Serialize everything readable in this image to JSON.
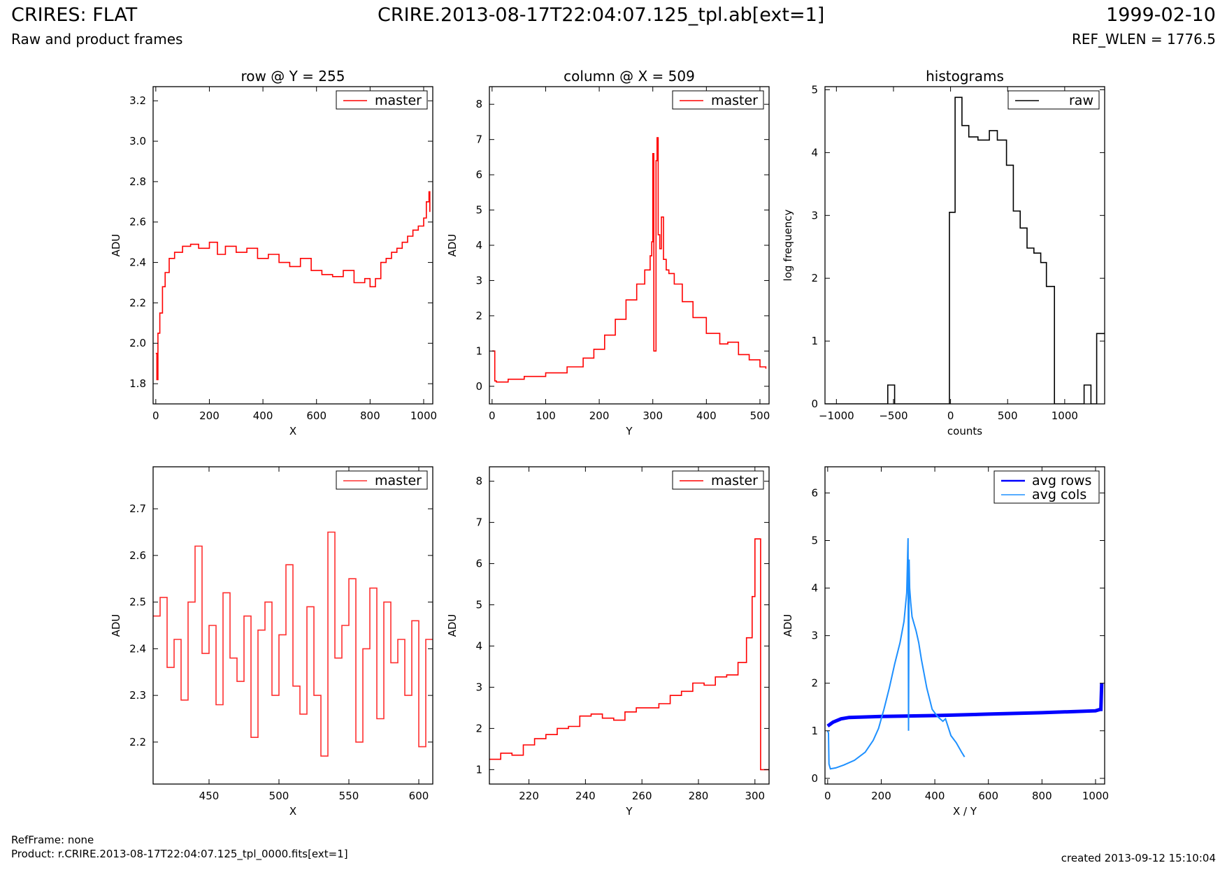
{
  "header": {
    "title_left": "CRIRES: FLAT",
    "subtitle_left": "Raw and product frames",
    "title_center": "CRIRE.2013-08-17T22:04:07.125_tpl.ab[ext=1]",
    "title_right": "1999-02-10",
    "subtitle_right": "REF_WLEN = 1776.5"
  },
  "footer": {
    "refframe": "RefFrame: none",
    "product": "Product: r.CRIRE.2013-08-17T22:04:07.125_tpl_0000.fits[ext=1]",
    "created": "created 2013-09-12 15:10:04"
  },
  "colors": {
    "red": "#ff0000",
    "blue": "#0000ff",
    "lightblue": "#1e90ff",
    "black": "#000000"
  },
  "chart_data": [
    {
      "type": "line",
      "title": "row @ Y = 255",
      "xlabel": "X",
      "ylabel": "ADU",
      "xlim": [
        -10,
        1034
      ],
      "ylim": [
        1.7,
        3.27
      ],
      "xticks": [
        0,
        200,
        400,
        600,
        800,
        1000
      ],
      "yticks": [
        1.8,
        2.0,
        2.2,
        2.4,
        2.6,
        2.8,
        3.0,
        3.2
      ],
      "xtick_labels": [
        "0",
        "200",
        "400",
        "600",
        "800",
        "1000"
      ],
      "ytick_labels": [
        "1.8",
        "2.0",
        "2.2",
        "2.4",
        "2.6",
        "2.8",
        "3.0",
        "3.2"
      ],
      "legend": "top-right",
      "legend_align": "right",
      "series": [
        {
          "name": "master",
          "color": "#ff0000",
          "style": "step",
          "x": [
            0,
            4,
            8,
            15,
            25,
            35,
            50,
            70,
            100,
            130,
            160,
            200,
            230,
            260,
            300,
            340,
            380,
            420,
            460,
            500,
            540,
            580,
            620,
            660,
            700,
            740,
            780,
            800,
            820,
            840,
            860,
            880,
            900,
            920,
            940,
            960,
            980,
            1000,
            1010,
            1020,
            1023
          ],
          "y": [
            1.95,
            1.82,
            2.05,
            2.15,
            2.28,
            2.35,
            2.42,
            2.45,
            2.48,
            2.49,
            2.47,
            2.5,
            2.44,
            2.48,
            2.45,
            2.47,
            2.42,
            2.44,
            2.4,
            2.38,
            2.42,
            2.36,
            2.34,
            2.33,
            2.36,
            2.3,
            2.32,
            2.28,
            2.32,
            2.4,
            2.42,
            2.45,
            2.47,
            2.5,
            2.53,
            2.56,
            2.58,
            2.62,
            2.7,
            2.75,
            2.65
          ]
        }
      ]
    },
    {
      "type": "line",
      "title": "column @ X = 509",
      "xlabel": "Y",
      "ylabel": "ADU",
      "xlim": [
        -5,
        517
      ],
      "ylim": [
        -0.5,
        8.5
      ],
      "xticks": [
        0,
        100,
        200,
        300,
        400,
        500
      ],
      "yticks": [
        0,
        1,
        2,
        3,
        4,
        5,
        6,
        7,
        8
      ],
      "xtick_labels": [
        "0",
        "100",
        "200",
        "300",
        "400",
        "500"
      ],
      "ytick_labels": [
        "0",
        "1",
        "2",
        "3",
        "4",
        "5",
        "6",
        "7",
        "8"
      ],
      "legend": "top-right",
      "legend_align": "right",
      "series": [
        {
          "name": "master",
          "color": "#ff0000",
          "style": "step",
          "x": [
            0,
            3,
            5,
            8,
            30,
            60,
            100,
            140,
            170,
            190,
            210,
            230,
            250,
            270,
            285,
            295,
            298,
            300,
            302,
            304,
            306,
            308,
            310,
            313,
            316,
            320,
            325,
            330,
            340,
            355,
            375,
            400,
            425,
            440,
            460,
            480,
            500,
            511
          ],
          "y": [
            1.0,
            1.0,
            0.15,
            0.12,
            0.2,
            0.28,
            0.38,
            0.55,
            0.8,
            1.05,
            1.45,
            1.9,
            2.45,
            2.9,
            3.3,
            3.7,
            4.1,
            6.6,
            1.0,
            1.0,
            6.4,
            7.05,
            4.3,
            3.9,
            4.8,
            3.6,
            3.3,
            3.2,
            2.9,
            2.4,
            1.95,
            1.5,
            1.2,
            1.25,
            0.9,
            0.75,
            0.55,
            0.5
          ]
        }
      ]
    },
    {
      "type": "line",
      "title": "histograms",
      "xlabel": "counts",
      "ylabel": "log frequency",
      "xlim": [
        -1100,
        1350
      ],
      "ylim": [
        0,
        5.05
      ],
      "xticks": [
        -1000,
        -500,
        0,
        500,
        1000
      ],
      "yticks": [
        0,
        1,
        2,
        3,
        4,
        5
      ],
      "xtick_labels": [
        "−1000",
        "−500",
        "0",
        "500",
        "1000"
      ],
      "ytick_labels": [
        "0",
        "1",
        "2",
        "3",
        "4",
        "5"
      ],
      "legend": "top-right",
      "legend_align": "right",
      "series": [
        {
          "name": "raw",
          "color": "#000000",
          "style": "step",
          "x": [
            -1100,
            -550,
            -490,
            -70,
            -10,
            40,
            100,
            160,
            240,
            340,
            410,
            490,
            550,
            610,
            670,
            730,
            790,
            840,
            910,
            1170,
            1230,
            1280,
            1340,
            1350
          ],
          "y": [
            0,
            0.3,
            0,
            0,
            3.05,
            4.88,
            4.43,
            4.25,
            4.2,
            4.35,
            4.2,
            3.8,
            3.07,
            2.8,
            2.48,
            2.4,
            2.25,
            1.87,
            0,
            0.3,
            0,
            1.12,
            1.12,
            1.12
          ]
        }
      ]
    },
    {
      "type": "line",
      "title": "",
      "xlabel": "X",
      "ylabel": "ADU",
      "xlim": [
        410,
        610
      ],
      "ylim": [
        2.11,
        2.79
      ],
      "xticks": [
        450,
        500,
        550,
        600
      ],
      "yticks": [
        2.2,
        2.3,
        2.4,
        2.5,
        2.6,
        2.7
      ],
      "xtick_labels": [
        "450",
        "500",
        "550",
        "600"
      ],
      "ytick_labels": [
        "2.2",
        "2.3",
        "2.4",
        "2.5",
        "2.6",
        "2.7"
      ],
      "legend": "top-right",
      "legend_align": "right",
      "series": [
        {
          "name": "master",
          "color": "#ff3030",
          "style": "step",
          "x": [
            410,
            415,
            420,
            425,
            430,
            435,
            440,
            445,
            450,
            455,
            460,
            465,
            470,
            475,
            480,
            485,
            490,
            495,
            500,
            505,
            510,
            515,
            520,
            525,
            530,
            535,
            540,
            545,
            550,
            555,
            560,
            565,
            570,
            575,
            580,
            585,
            590,
            595,
            600,
            605,
            610
          ],
          "y": [
            2.47,
            2.51,
            2.36,
            2.42,
            2.29,
            2.5,
            2.62,
            2.39,
            2.45,
            2.28,
            2.52,
            2.38,
            2.33,
            2.47,
            2.21,
            2.44,
            2.5,
            2.3,
            2.43,
            2.58,
            2.32,
            2.26,
            2.49,
            2.3,
            2.17,
            2.65,
            2.38,
            2.45,
            2.55,
            2.2,
            2.4,
            2.53,
            2.25,
            2.5,
            2.37,
            2.42,
            2.3,
            2.46,
            2.19,
            2.42,
            2.42
          ]
        }
      ]
    },
    {
      "type": "line",
      "title": "",
      "xlabel": "Y",
      "ylabel": "ADU",
      "xlim": [
        206,
        305
      ],
      "ylim": [
        0.65,
        8.35
      ],
      "xticks": [
        220,
        240,
        260,
        280,
        300
      ],
      "yticks": [
        1,
        2,
        3,
        4,
        5,
        6,
        7,
        8
      ],
      "xtick_labels": [
        "220",
        "240",
        "260",
        "280",
        "300"
      ],
      "ytick_labels": [
        "1",
        "2",
        "3",
        "4",
        "5",
        "6",
        "7",
        "8"
      ],
      "legend": "top-right",
      "legend_align": "right",
      "series": [
        {
          "name": "master",
          "color": "#ff0000",
          "style": "step",
          "x": [
            206,
            210,
            214,
            218,
            222,
            226,
            230,
            234,
            238,
            242,
            246,
            250,
            254,
            258,
            262,
            266,
            270,
            274,
            278,
            282,
            286,
            290,
            294,
            297,
            299,
            300,
            301,
            302,
            303,
            305
          ],
          "y": [
            1.25,
            1.4,
            1.35,
            1.6,
            1.75,
            1.85,
            2.0,
            2.05,
            2.3,
            2.35,
            2.25,
            2.2,
            2.4,
            2.5,
            2.5,
            2.6,
            2.8,
            2.9,
            3.1,
            3.05,
            3.25,
            3.3,
            3.6,
            4.2,
            5.2,
            6.6,
            6.6,
            1.0,
            1.0,
            1.0
          ]
        }
      ]
    },
    {
      "type": "line",
      "title": "",
      "xlabel": "X / Y",
      "ylabel": "ADU",
      "xlim": [
        -10,
        1034
      ],
      "ylim": [
        -0.12,
        6.55
      ],
      "xticks": [
        0,
        200,
        400,
        600,
        800,
        1000
      ],
      "yticks": [
        0,
        1,
        2,
        3,
        4,
        5,
        6
      ],
      "xtick_labels": [
        "0",
        "200",
        "400",
        "600",
        "800",
        "1000"
      ],
      "ytick_labels": [
        "0",
        "1",
        "2",
        "3",
        "4",
        "5",
        "6"
      ],
      "legend": "top-right",
      "legend_align": "left",
      "series": [
        {
          "name": "avg rows",
          "color": "#0000ff",
          "style": "line",
          "width": 5,
          "x": [
            0,
            20,
            50,
            80,
            200,
            400,
            600,
            800,
            1000,
            1018,
            1020,
            1023
          ],
          "y": [
            1.1,
            1.18,
            1.25,
            1.28,
            1.3,
            1.32,
            1.35,
            1.38,
            1.42,
            1.45,
            1.45,
            2.0
          ]
        },
        {
          "name": "avg cols",
          "color": "#1e90ff",
          "style": "line",
          "width": 2,
          "x": [
            0,
            3,
            5,
            10,
            30,
            60,
            100,
            140,
            170,
            190,
            210,
            230,
            250,
            270,
            285,
            295,
            300,
            302,
            304,
            306,
            310,
            315,
            320,
            330,
            340,
            350,
            370,
            390,
            410,
            430,
            440,
            460,
            480,
            500,
            511
          ],
          "y": [
            1.0,
            0.95,
            0.3,
            0.2,
            0.22,
            0.28,
            0.38,
            0.55,
            0.8,
            1.05,
            1.45,
            1.9,
            2.4,
            2.85,
            3.3,
            3.9,
            5.05,
            1.0,
            4.6,
            4.0,
            3.7,
            3.4,
            3.3,
            3.1,
            2.85,
            2.5,
            1.9,
            1.45,
            1.3,
            1.2,
            1.25,
            0.9,
            0.75,
            0.55,
            0.45
          ]
        }
      ]
    }
  ]
}
